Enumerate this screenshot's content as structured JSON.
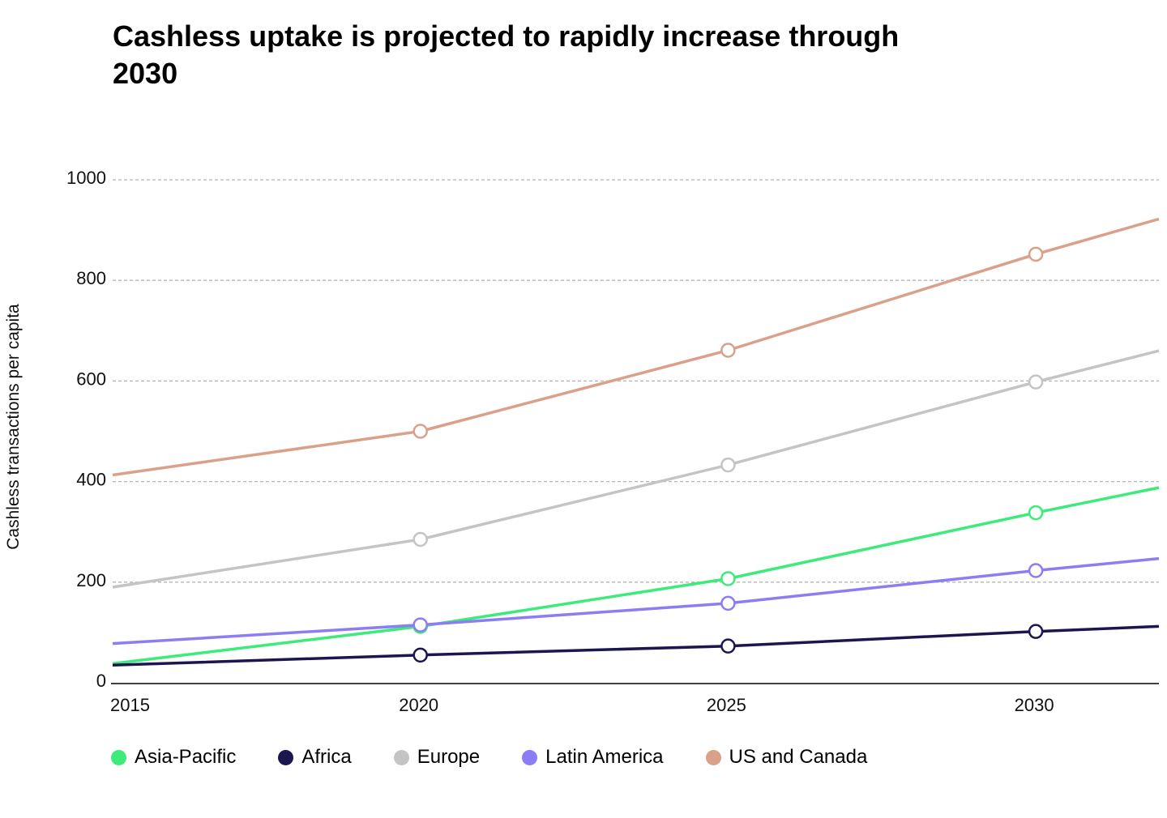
{
  "chart_data": {
    "type": "line",
    "title": "Cashless uptake is projected to rapidly increase through 2030",
    "xlabel": "",
    "ylabel": "Cashless transactions per capita",
    "x_ticks": [
      "2015",
      "2020",
      "2025",
      "2030"
    ],
    "y_ticks": [
      "0",
      "200",
      "400",
      "600",
      "800",
      "1000"
    ],
    "xlim": [
      2015,
      2032
    ],
    "ylim": [
      0,
      1000
    ],
    "grid": true,
    "series": [
      {
        "name": "Asia-Pacific",
        "color": "#3deb7a",
        "x": [
          2015,
          2020,
          2025,
          2030,
          2032
        ],
        "values": [
          38,
          112,
          207,
          338,
          388
        ],
        "markers": [
          false,
          true,
          true,
          true,
          false
        ]
      },
      {
        "name": "Africa",
        "color": "#1c1650",
        "x": [
          2015,
          2020,
          2025,
          2030,
          2032
        ],
        "values": [
          35,
          55,
          73,
          102,
          112
        ],
        "markers": [
          false,
          true,
          true,
          true,
          false
        ]
      },
      {
        "name": "Europe",
        "color": "#c4c4c4",
        "x": [
          2015,
          2020,
          2025,
          2030,
          2032
        ],
        "values": [
          190,
          285,
          433,
          598,
          660
        ],
        "markers": [
          false,
          true,
          true,
          true,
          false
        ]
      },
      {
        "name": "Latin America",
        "color": "#8c7df5",
        "x": [
          2015,
          2020,
          2025,
          2030,
          2032
        ],
        "values": [
          78,
          115,
          158,
          223,
          247
        ],
        "markers": [
          false,
          true,
          true,
          true,
          false
        ]
      },
      {
        "name": "US and Canada",
        "color": "#dba08a",
        "x": [
          2015,
          2020,
          2025,
          2030,
          2032
        ],
        "values": [
          413,
          500,
          661,
          852,
          922
        ],
        "markers": [
          false,
          true,
          true,
          true,
          false
        ]
      }
    ],
    "legend": "bottom-left"
  }
}
